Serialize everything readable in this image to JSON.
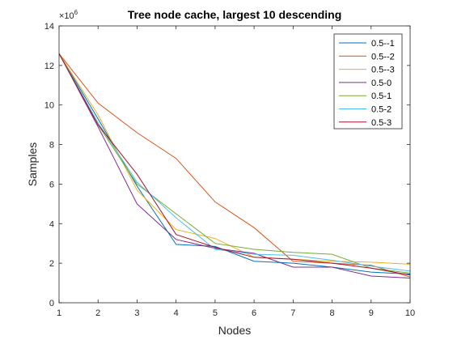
{
  "chart_data": {
    "type": "line",
    "title": "Tree node cache, largest 10 descending",
    "xlabel": "Nodes",
    "ylabel": "Samples",
    "y_exponent_label": "×10",
    "y_exponent": "6",
    "xlim": [
      1,
      10
    ],
    "ylim": [
      0,
      14
    ],
    "xticks": [
      1,
      2,
      3,
      4,
      5,
      6,
      7,
      8,
      9,
      10
    ],
    "yticks": [
      0,
      2,
      4,
      6,
      8,
      10,
      12,
      14
    ],
    "grid": false,
    "legend_position": "top-right",
    "x": [
      1,
      2,
      3,
      4,
      5,
      6,
      7,
      8,
      9,
      10
    ],
    "series": [
      {
        "name": "0.5--1",
        "color": "#0072BD",
        "values": [
          12.6,
          9.3,
          5.9,
          2.95,
          2.85,
          2.1,
          2.0,
          1.8,
          1.55,
          1.45
        ]
      },
      {
        "name": "0.5--2",
        "color": "#D95319",
        "values": [
          12.6,
          10.1,
          8.6,
          7.3,
          5.1,
          3.8,
          2.1,
          2.0,
          1.9,
          1.3
        ]
      },
      {
        "name": "0.5--3",
        "color": "#EDB120",
        "values": [
          12.6,
          9.5,
          5.7,
          3.7,
          3.25,
          2.3,
          2.2,
          2.1,
          2.05,
          1.95
        ]
      },
      {
        "name": "0.5-0",
        "color": "#7E2F8E",
        "values": [
          12.6,
          8.9,
          5.0,
          3.2,
          2.75,
          2.5,
          1.8,
          1.8,
          1.35,
          1.25
        ]
      },
      {
        "name": "0.5-1",
        "color": "#77AC30",
        "values": [
          12.6,
          9.0,
          6.0,
          4.5,
          3.0,
          2.7,
          2.55,
          2.45,
          1.75,
          1.5
        ]
      },
      {
        "name": "0.5-2",
        "color": "#4DBEEE",
        "values": [
          12.6,
          9.1,
          6.1,
          4.3,
          2.7,
          2.45,
          2.4,
          2.15,
          1.85,
          1.6
        ]
      },
      {
        "name": "0.5-3",
        "color": "#A2142F",
        "values": [
          12.6,
          9.0,
          6.5,
          3.45,
          2.8,
          2.3,
          2.2,
          2.0,
          1.75,
          1.4
        ]
      }
    ]
  }
}
